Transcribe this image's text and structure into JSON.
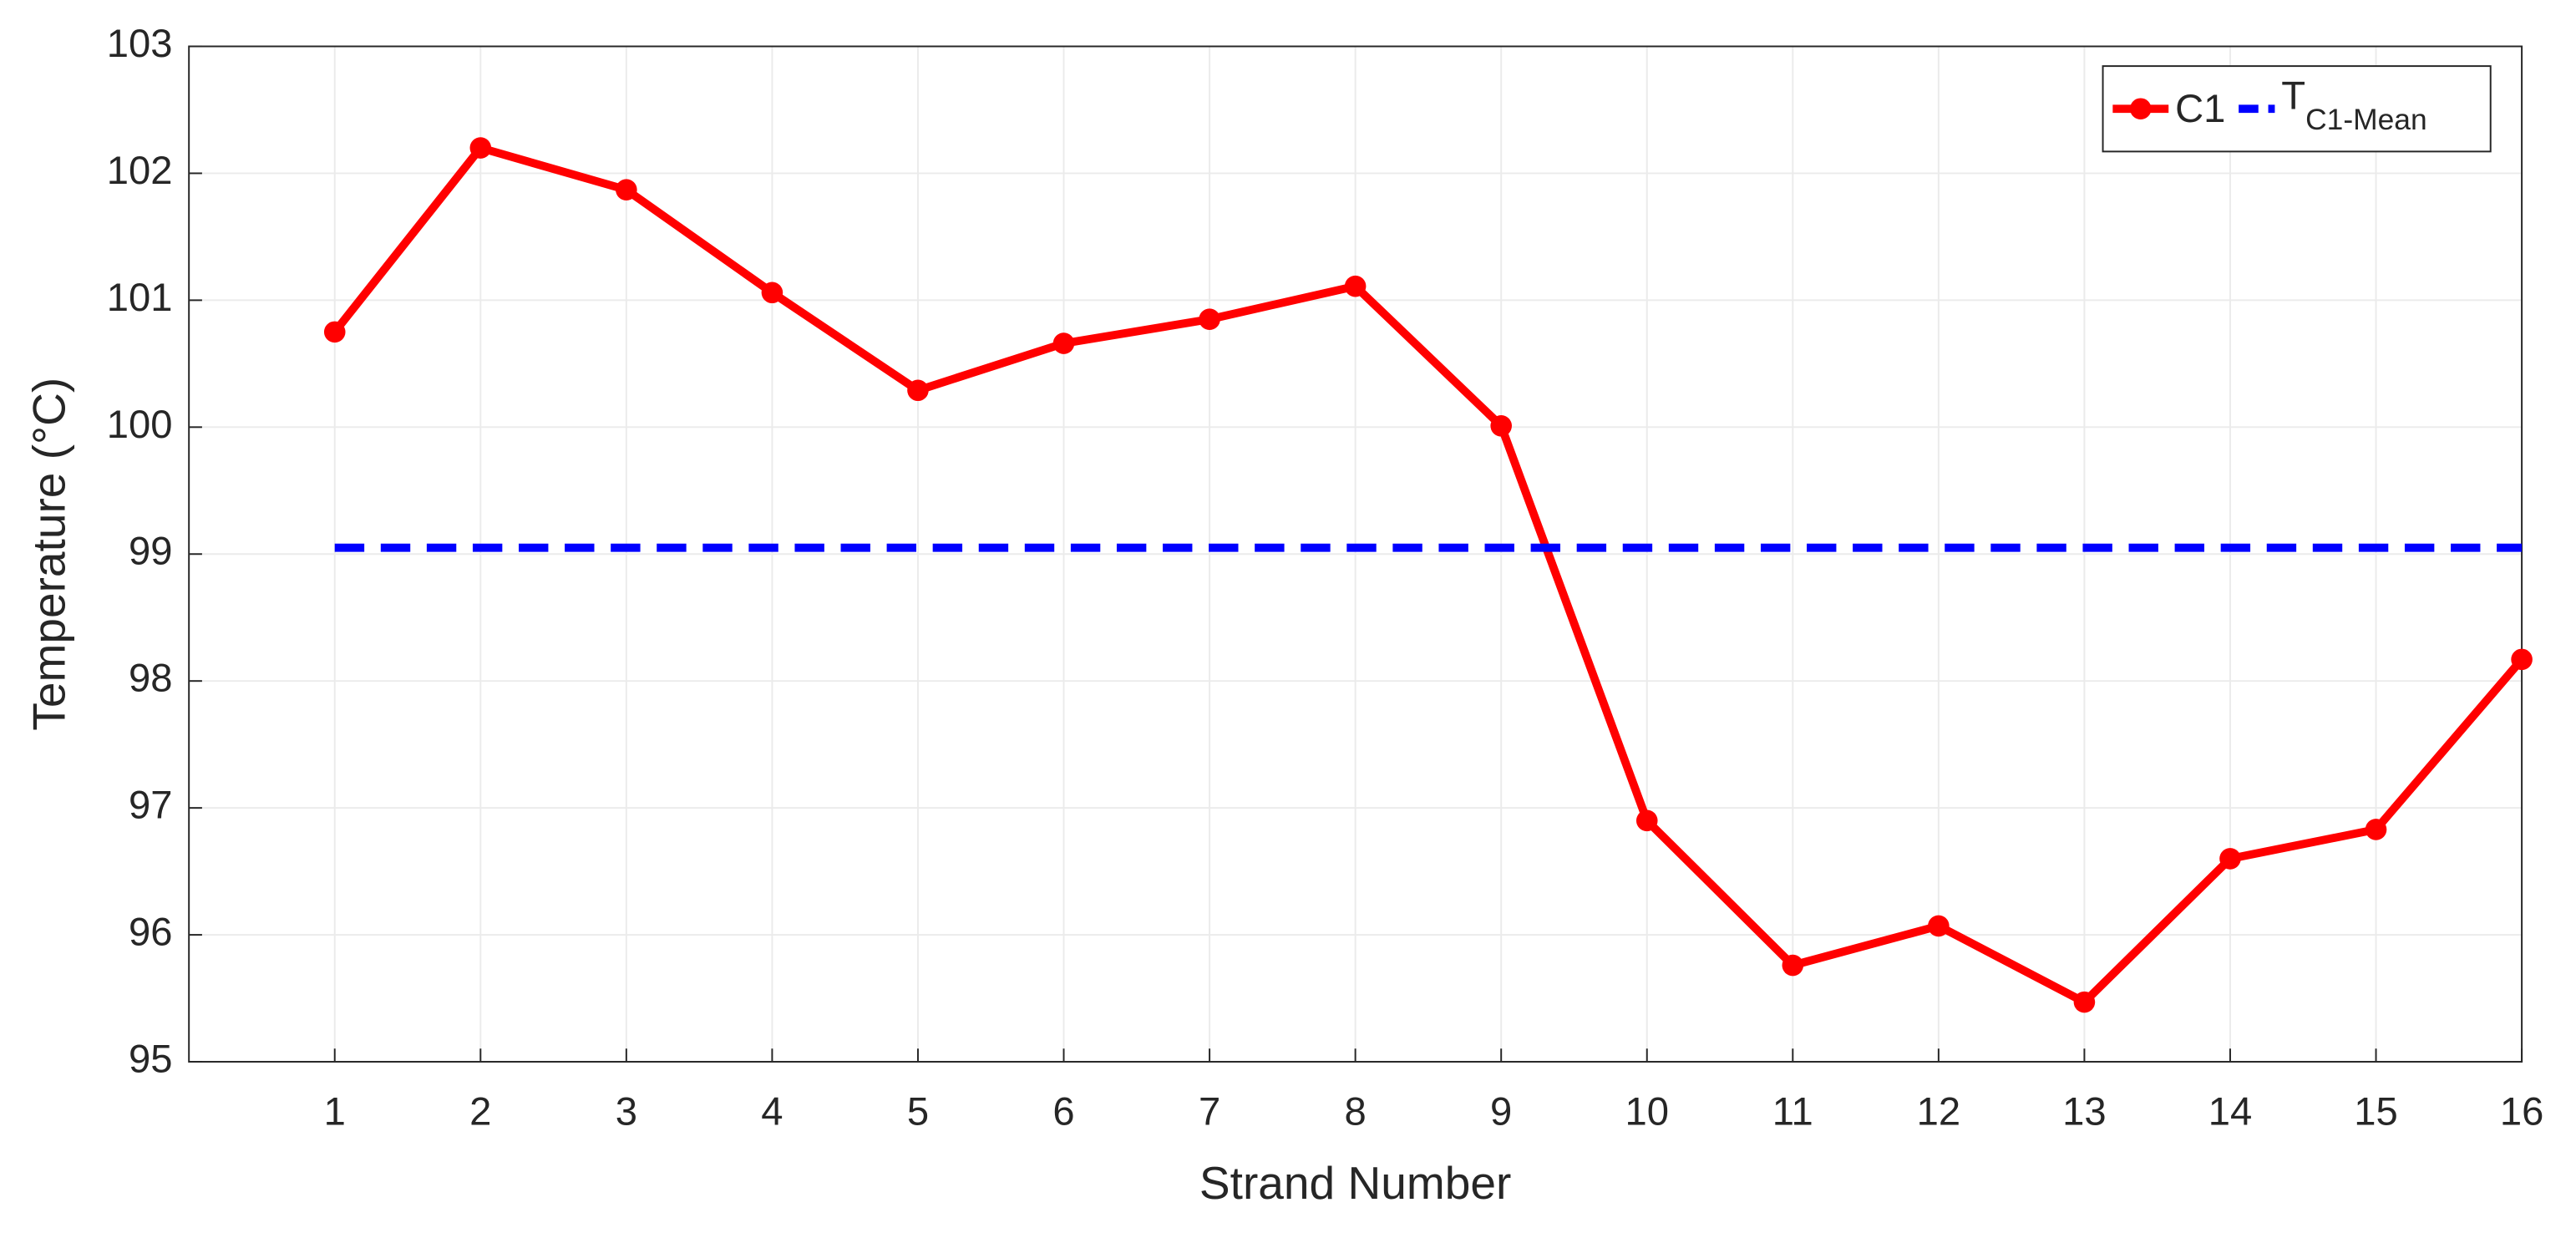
{
  "chart_data": {
    "type": "line",
    "x_label": "Strand Number",
    "y_label": "Temperature (°C)",
    "x": [
      1,
      2,
      3,
      4,
      5,
      6,
      7,
      8,
      9,
      10,
      11,
      12,
      13,
      14,
      15,
      16
    ],
    "series": [
      {
        "name": "C1",
        "color": "#ff0000",
        "marker": "circle",
        "values": [
          100.75,
          102.2,
          101.87,
          101.06,
          100.29,
          100.66,
          100.85,
          101.11,
          100.01,
          96.9,
          95.76,
          96.07,
          95.47,
          96.6,
          96.83,
          98.17
        ]
      },
      {
        "name": "T",
        "name_subscript": "C1-Mean",
        "color": "#0000ff",
        "dashed": true,
        "x": [
          1,
          16
        ],
        "values": [
          99.05,
          99.05
        ]
      }
    ],
    "xlim": [
      0,
      16
    ],
    "xticks": [
      1,
      2,
      3,
      4,
      5,
      6,
      7,
      8,
      9,
      10,
      11,
      12,
      13,
      14,
      15,
      16
    ],
    "ylim": [
      95,
      103
    ],
    "yticks": [
      95,
      96,
      97,
      98,
      99,
      100,
      101,
      102,
      103
    ],
    "grid": true,
    "legend": "upper right"
  }
}
